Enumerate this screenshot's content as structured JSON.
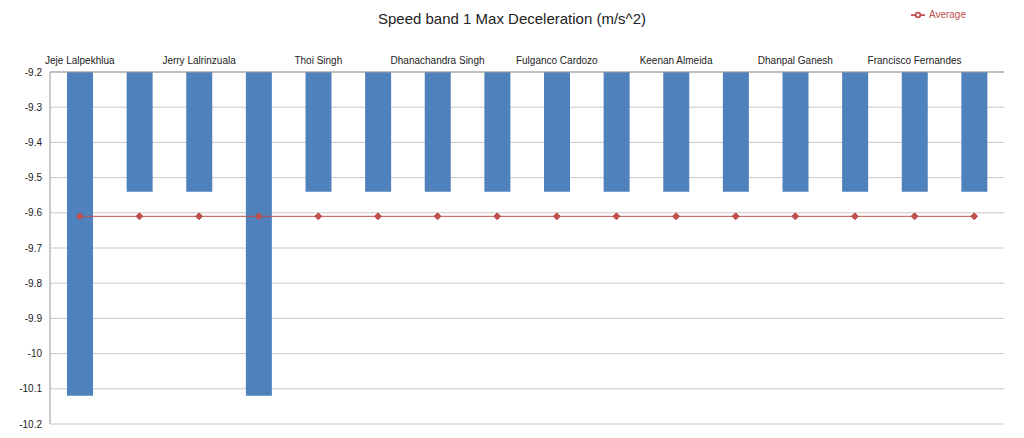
{
  "chart_data": {
    "type": "bar",
    "title": "Speed band 1 Max Deceleration (m/s^2)",
    "categories": [
      "Jeje Lalpekhlua",
      null,
      "Jerry Lalrinzuala",
      null,
      "Thoi Singh",
      null,
      "Dhanachandra Singh",
      null,
      "Fulganco Cardozo",
      null,
      "Keenan Almeida",
      null,
      "Dhanpal Ganesh",
      null,
      "Francisco Fernandes",
      null
    ],
    "series": [
      {
        "type": "bar",
        "color": "#4f81bd",
        "values": [
          -10.12,
          -9.54,
          -9.54,
          -10.12,
          -9.54,
          -9.54,
          -9.54,
          -9.54,
          -9.54,
          -9.54,
          -9.54,
          -9.54,
          -9.54,
          -9.54,
          -9.54,
          -9.54
        ]
      },
      {
        "name": "Average",
        "type": "line",
        "color": "#c0504d",
        "marker": "diamond",
        "values": [
          -9.61,
          -9.61,
          -9.61,
          -9.61,
          -9.61,
          -9.61,
          -9.61,
          -9.61,
          -9.61,
          -9.61,
          -9.61,
          -9.61,
          -9.61,
          -9.61,
          -9.61,
          -9.61
        ]
      }
    ],
    "ylim": [
      -10.2,
      -9.2
    ],
    "yticks": [
      -9.2,
      -9.3,
      -9.4,
      -9.5,
      -9.6,
      -9.7,
      -9.8,
      -9.9,
      -10,
      -10.1,
      -10.2
    ],
    "grid": true,
    "legend": "upper right"
  }
}
